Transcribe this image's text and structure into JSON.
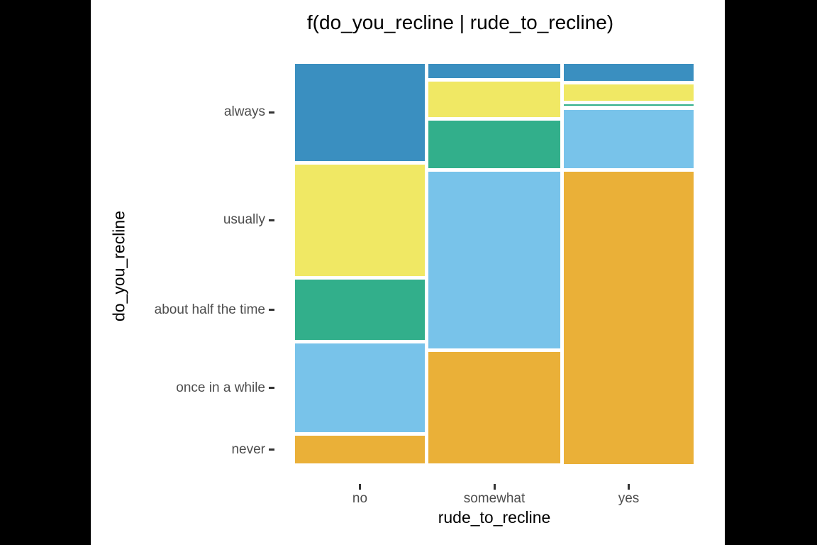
{
  "chart": {
    "title": "f(do_you_recline | rude_to_recline)",
    "x_axis_title": "rude_to_recline",
    "y_axis_title": "do_you_recline"
  },
  "chart_data": {
    "type": "mosaic",
    "title": "f(do_you_recline | rude_to_recline)",
    "xlabel": "rude_to_recline",
    "ylabel": "do_you_recline",
    "x_categories": [
      "no",
      "somewhat",
      "yes"
    ],
    "y_categories": [
      "always",
      "usually",
      "about half the time",
      "once in a while",
      "never"
    ],
    "palette": [
      "#3a8fc0",
      "#f0e864",
      "#32af8b",
      "#78c3ea",
      "#eab038"
    ],
    "legend": "none",
    "note": "Each column shows the conditional distribution of do_you_recline given rude_to_recline; segments listed top-to-bottom in y_categories order",
    "columns": [
      {
        "x": "no",
        "proportions": [
          0.251,
          0.29,
          0.155,
          0.231,
          0.072
        ]
      },
      {
        "x": "somewhat",
        "proportions": [
          0.037,
          0.092,
          0.122,
          0.458,
          0.29
        ]
      },
      {
        "x": "yes",
        "proportions": [
          0.044,
          0.042,
          0.005,
          0.151,
          0.758
        ]
      }
    ]
  }
}
